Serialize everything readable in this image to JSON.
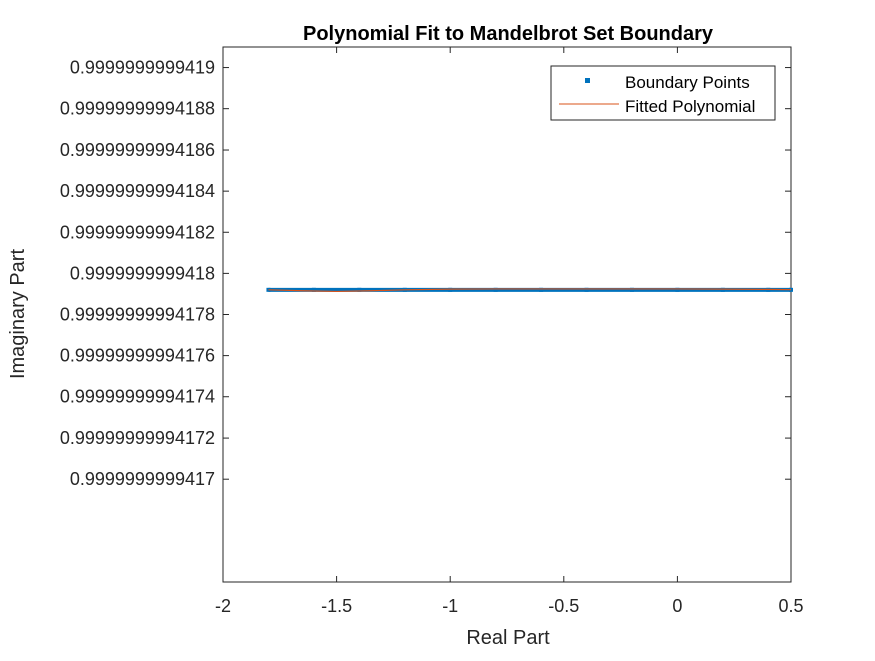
{
  "chart_data": {
    "type": "line",
    "title": "Polynomial Fit to Mandelbrot Set Boundary",
    "xlabel": "Real Part",
    "ylabel": "Imaginary Part",
    "xlim": [
      -2,
      0.5
    ],
    "ylim": [
      0.99999999994165,
      0.99999999994191
    ],
    "x_ticks": [
      -2,
      -1.5,
      -1,
      -0.5,
      0,
      0.5
    ],
    "x_tick_labels": [
      "-2",
      "-1.5",
      "-1",
      "-0.5",
      "0",
      "0.5"
    ],
    "y_ticks": [
      0.9999999999417,
      0.99999999994172,
      0.99999999994174,
      0.99999999994176,
      0.99999999994178,
      0.9999999999418,
      0.99999999994182,
      0.99999999994184,
      0.99999999994186,
      0.99999999994188,
      0.9999999999419
    ],
    "y_tick_labels": [
      "0.9999999999417",
      "0.99999999994172",
      "0.99999999994174",
      "0.99999999994176",
      "0.99999999994178",
      "0.9999999999418",
      "0.99999999994182",
      "0.99999999994184",
      "0.99999999994186",
      "0.99999999994188",
      "0.9999999999419"
    ],
    "grid": false,
    "legend_position": "top-right",
    "series": [
      {
        "name": "Boundary Points",
        "style": "markers",
        "color": "#0072BD",
        "x": [
          -1.8,
          -1.6,
          -1.4,
          -1.2,
          -1.0,
          -0.8,
          -0.6,
          -0.4,
          -0.2,
          0.0,
          0.2,
          0.4,
          0.5
        ],
        "y": [
          0.999999999941792,
          0.999999999941792,
          0.999999999941792,
          0.999999999941792,
          0.999999999941792,
          0.999999999941792,
          0.999999999941792,
          0.999999999941792,
          0.999999999941792,
          0.999999999941792,
          0.999999999941792,
          0.999999999941792,
          0.999999999941792
        ]
      },
      {
        "name": "Fitted Polynomial",
        "style": "line",
        "color": "#D95319",
        "x": [
          -1.8,
          -1.65,
          -1.5,
          -1.35,
          -1.2,
          -1.0,
          -0.8,
          -0.6,
          -0.4,
          -0.2,
          0.0,
          0.2,
          0.4,
          0.5
        ],
        "y": [
          0.999999999941792,
          0.9999999999417916,
          0.9999999999417912,
          0.9999999999417916,
          0.999999999941792,
          0.9999999999417923,
          0.9999999999417925,
          0.9999999999417925,
          0.9999999999417925,
          0.9999999999417925,
          0.9999999999417925,
          0.9999999999417923,
          0.9999999999417922,
          0.9999999999417921
        ]
      }
    ]
  }
}
